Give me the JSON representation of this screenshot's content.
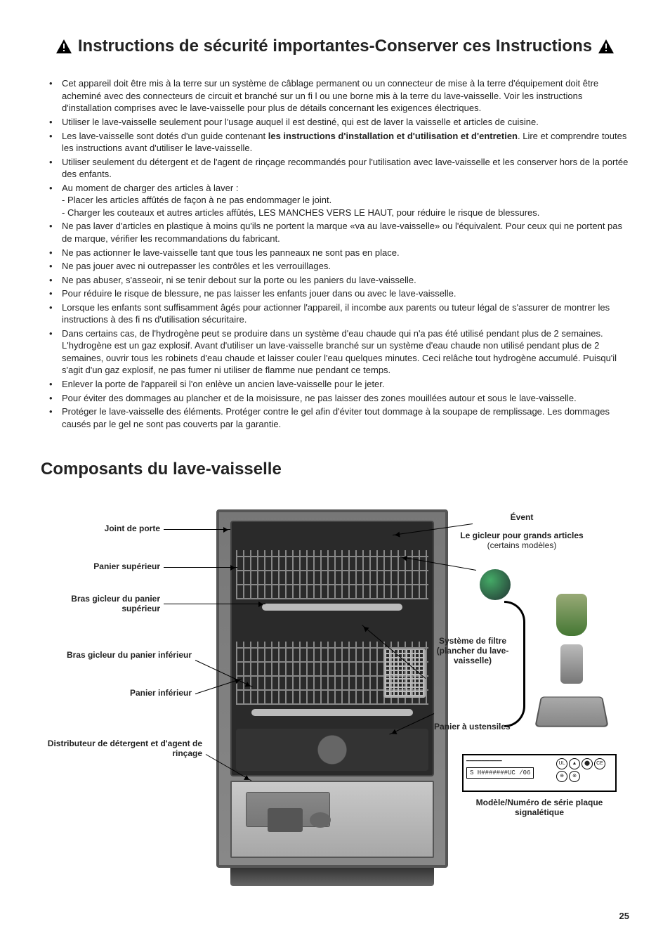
{
  "title": "Instructions de sécurité importantes-Conserver ces Instructions",
  "bullets": [
    {
      "text": "Cet appareil doit être mis à la terre sur un système de câblage permanent ou un connecteur de mise à la terre d'équipement doit être acheminé avec des connecteurs de circuit et branché sur un fi l ou une borne mis à la terre du lave-vaisselle. Voir les instructions d'installation comprises avec le lave-vaisselle pour plus de détails concernant les exigences électriques."
    },
    {
      "text": "Utiliser le lave-vaisselle seulement pour l'usage auquel il est destiné, qui est de laver la vaisselle et articles de cuisine."
    },
    {
      "pre": "Les lave-vaisselle sont dotés d'un guide contenant ",
      "bold": "les instructions d'installation et d'utilisation et d'entretien",
      "post": ". Lire et comprendre toutes les instructions avant d'utiliser le lave-vaisselle."
    },
    {
      "text": "Utiliser seulement du détergent et de l'agent de rinçage recommandés pour l'utilisation avec lave-vaisselle et les conserver hors de la portée des enfants."
    },
    {
      "text": "Au moment de charger des articles à laver :",
      "subs": [
        "- Placer les articles affûtés de façon à ne pas endommager le joint.",
        "- Charger les couteaux et autres articles affûtés, LES MANCHES VERS LE HAUT, pour réduire le risque de blessures."
      ]
    },
    {
      "text": "Ne pas laver d'articles en plastique à moins qu'ils ne portent la marque «va au lave-vaisselle» ou l'équivalent. Pour ceux qui ne portent pas de marque, vérifier les recommandations du fabricant."
    },
    {
      "text": "Ne pas actionner le lave-vaisselle tant que tous les panneaux ne sont pas en place."
    },
    {
      "text": "Ne pas jouer avec ni outrepasser les contrôles et les verrouillages."
    },
    {
      "text": "Ne pas abuser, s'asseoir, ni se tenir debout sur la porte ou les paniers du lave-vaisselle."
    },
    {
      "text": "Pour réduire le risque de blessure, ne pas laisser les enfants jouer dans ou avec le lave-vaisselle."
    },
    {
      "text": "Lorsque les enfants sont suffisamment âgés pour actionner l'appareil, il incombe aux parents ou tuteur légal de s'assurer de montrer les instructions à des fi ns d'utilisation sécuritaire."
    },
    {
      "text": "Dans certains cas, de l'hydrogène peut se produire dans un système d'eau chaude qui n'a pas été utilisé pendant plus de 2 semaines. L'hydrogène est un gaz explosif. Avant d'utiliser un lave-vaisselle branché sur un système d'eau chaude non utilisé pendant plus de 2 semaines, ouvrir tous les robinets d'eau chaude et laisser couler l'eau quelques minutes. Ceci relâche tout hydrogène accumulé. Puisqu'il s'agit d'un gaz explosif, ne pas fumer ni utiliser de flamme nue pendant ce temps."
    },
    {
      "text": "Enlever la porte de l'appareil si l'on enlève un ancien lave-vaisselle pour le jeter."
    },
    {
      "text": "Pour éviter des dommages au plancher et de la moisissure, ne pas laisser des zones mouillées autour et sous le lave-vaisselle."
    },
    {
      "text": "Protéger le lave-vaisselle des éléments. Protéger contre le gel afin d'éviter tout dommage à la soupape de remplissage. Les dommages causés par le gel ne sont pas couverts par la garantie."
    }
  ],
  "section2_title": "Composants du lave-vaisselle",
  "labels": {
    "door_seal": "Joint de porte",
    "upper_rack": "Panier supérieur",
    "upper_spray": "Bras gicleur du panier supérieur",
    "lower_spray": "Bras gicleur du panier inférieur",
    "lower_rack": "Panier inférieur",
    "dispenser": "Distributeur de détergent et d'agent de rinçage",
    "vent": "Évent",
    "tall_spray_l1": "Le gicleur pour grands articles",
    "tall_spray_note": "(certains modèles)",
    "filter_l1": "Système de filtre (plancher du lave-vaisselle)",
    "utensil": "Panier à ustensiles",
    "rating": "Modèle/Numéro de série plaque signalétique"
  },
  "rating_model": "S H#######UC /06",
  "page_number": "25"
}
